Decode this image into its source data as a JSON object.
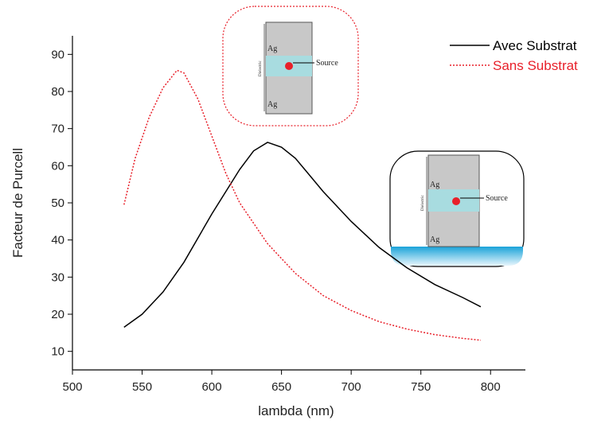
{
  "chart_data": {
    "type": "line",
    "x_label": "lambda (nm)",
    "y_label": "Facteur de Purcell",
    "xlim": [
      500,
      825
    ],
    "ylim": [
      5,
      95
    ],
    "xticks": [
      500,
      550,
      600,
      650,
      700,
      750,
      800
    ],
    "yticks": [
      10,
      20,
      30,
      40,
      50,
      60,
      70,
      80,
      90
    ],
    "legend": "top-right",
    "series": [
      {
        "name": "Avec Substrat",
        "color": "#000000",
        "dash": "solid",
        "x": [
          537,
          550,
          565,
          580,
          600,
          620,
          630,
          640,
          650,
          660,
          680,
          700,
          720,
          740,
          760,
          780,
          793
        ],
        "values": [
          16.5,
          20,
          26,
          34,
          47,
          59,
          64,
          66.3,
          65,
          62,
          53,
          45,
          38,
          32.5,
          28,
          24.5,
          22
        ]
      },
      {
        "name": "Sans Substrat",
        "color": "#e8202a",
        "dash": "dotted",
        "x": [
          537,
          545,
          555,
          565,
          575,
          580,
          590,
          600,
          610,
          620,
          640,
          660,
          680,
          700,
          720,
          740,
          760,
          780,
          793
        ],
        "values": [
          49.5,
          62,
          73,
          81,
          85.7,
          85,
          78,
          68,
          58,
          50,
          39,
          31,
          25,
          21,
          18,
          16,
          14.5,
          13.5,
          13
        ]
      }
    ],
    "insets": [
      {
        "labels": [
          "Ag",
          "Ag",
          "Source",
          "Dielectric"
        ]
      },
      {
        "labels": [
          "Ag",
          "Ag",
          "Source",
          "Dielectric"
        ]
      }
    ]
  }
}
